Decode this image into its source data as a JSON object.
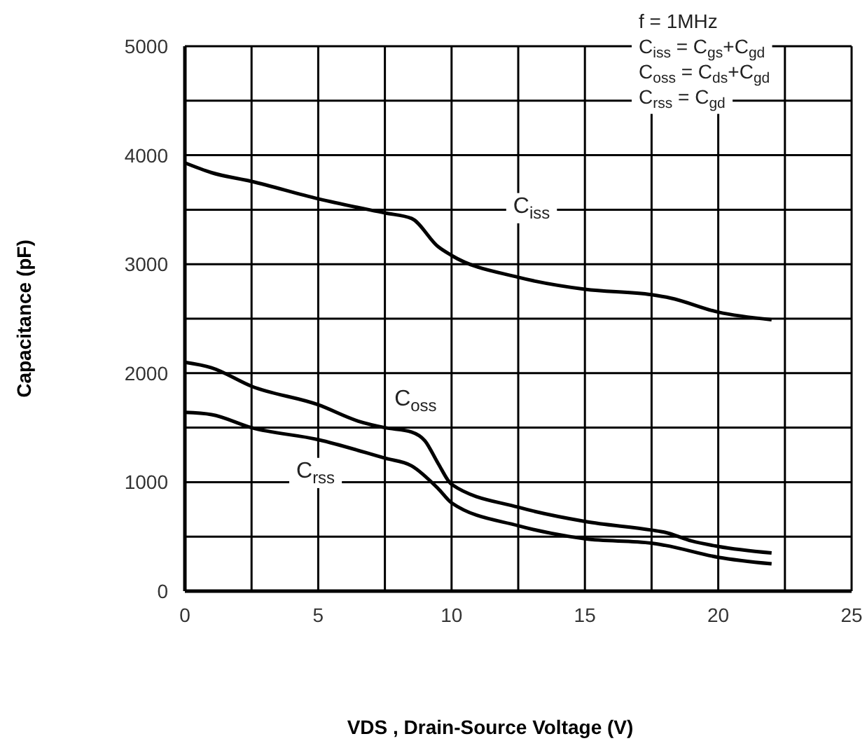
{
  "chart_data": {
    "type": "line",
    "xlabel": "VDS , Drain-Source Voltage (V)",
    "ylabel": "Capacitance (pF)",
    "xlim": [
      0,
      25
    ],
    "xticks": [
      0,
      {
        "value": 2.5,
        "label": null
      },
      5,
      {
        "value": 7.5,
        "label": null
      },
      10,
      {
        "value": 12.5,
        "label": null
      },
      15,
      {
        "value": 17.5,
        "label": null
      },
      20,
      {
        "value": 22.5,
        "label": null
      },
      25
    ],
    "ylim": [
      0,
      5000
    ],
    "yticks": [
      0,
      {
        "value": 500,
        "label": null
      },
      1000,
      {
        "value": 1500,
        "label": null
      },
      2000,
      {
        "value": 2500,
        "label": null
      },
      3000,
      {
        "value": 3500,
        "label": null
      },
      4000,
      {
        "value": 4500,
        "label": null
      },
      5000
    ],
    "grid": true,
    "legend": false,
    "marker": "none",
    "line_style": "solid",
    "series": [
      {
        "name": "C$_{iss}$",
        "color": "#000000",
        "x": [
          0,
          1,
          2.5,
          5,
          7.5,
          8.5,
          9.5,
          10,
          12.5,
          15,
          17.5,
          18.2,
          20,
          22
        ],
        "values": [
          3930,
          3840,
          3760,
          3600,
          3470,
          3420,
          3160,
          3080,
          2880,
          2770,
          2720,
          2690,
          2560,
          2490
        ]
      },
      {
        "name": "C$_{oss}$",
        "color": "#000000",
        "x": [
          0,
          1,
          2.5,
          5,
          6.5,
          7.5,
          8.5,
          9,
          9.5,
          10,
          12.5,
          15,
          17.5,
          18,
          19,
          20,
          22
        ],
        "values": [
          2100,
          2050,
          1880,
          1710,
          1560,
          1500,
          1460,
          1380,
          1170,
          980,
          770,
          640,
          560,
          540,
          460,
          410,
          350
        ]
      },
      {
        "name": "C$_{rss}$",
        "color": "#000000",
        "x": [
          0,
          1,
          2.5,
          5,
          7.5,
          8.5,
          9.5,
          10,
          12.5,
          15,
          17.5,
          18,
          20,
          22
        ],
        "values": [
          1640,
          1620,
          1500,
          1390,
          1220,
          1150,
          940,
          810,
          600,
          480,
          440,
          420,
          310,
          250
        ]
      }
    ],
    "annotations": [
      "f = 1MHz",
      "C$_{iss}$ = C$_{gs}$+C$_{gd}$",
      "C$_{oss}$ = C$_{ds}$+C$_{gd}$",
      "C$_{rss}$ = C$_{gd}$"
    ]
  }
}
